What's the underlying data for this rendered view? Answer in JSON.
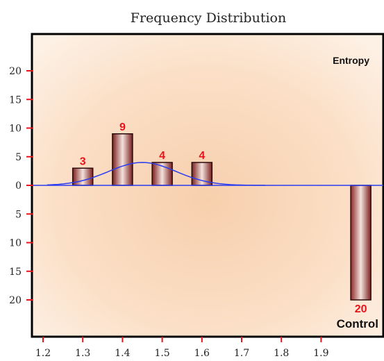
{
  "chart_data": {
    "type": "bar",
    "title": "Frequency Distribution",
    "x_ticks": [
      "1.2",
      "1.3",
      "1.4",
      "1.5",
      "1.6",
      "1.7",
      "1.8",
      "1.9"
    ],
    "xlim": [
      1.2,
      2.05
    ],
    "y_ticks_up": [
      "20",
      "15",
      "10",
      "5",
      "0"
    ],
    "y_ticks_down": [
      "5",
      "10",
      "15",
      "20"
    ],
    "ylim": [
      -20,
      20
    ],
    "series": [
      {
        "name": "Entropy",
        "direction": "up",
        "x": [
          1.3,
          1.4,
          1.5,
          1.6
        ],
        "values": [
          3,
          9,
          4,
          4
        ],
        "labels": [
          "3",
          "9",
          "4",
          "4"
        ]
      },
      {
        "name": "Control",
        "direction": "down",
        "x": [
          2.0
        ],
        "values": [
          20
        ],
        "labels": [
          "20"
        ]
      }
    ],
    "normal_curve": {
      "mean": 1.45,
      "sd": 0.085,
      "peak": 4,
      "x_range": [
        1.21,
        1.76
      ]
    },
    "colors": {
      "bar_dark": "#7a1e1e",
      "bar_light": "#f4e2dc",
      "value_label": "#e8141c",
      "curve": "#2a3cf0",
      "axis_tick": "#e8141c",
      "background_light": "#fdebd8",
      "background_mid": "#f6c9a6"
    }
  }
}
